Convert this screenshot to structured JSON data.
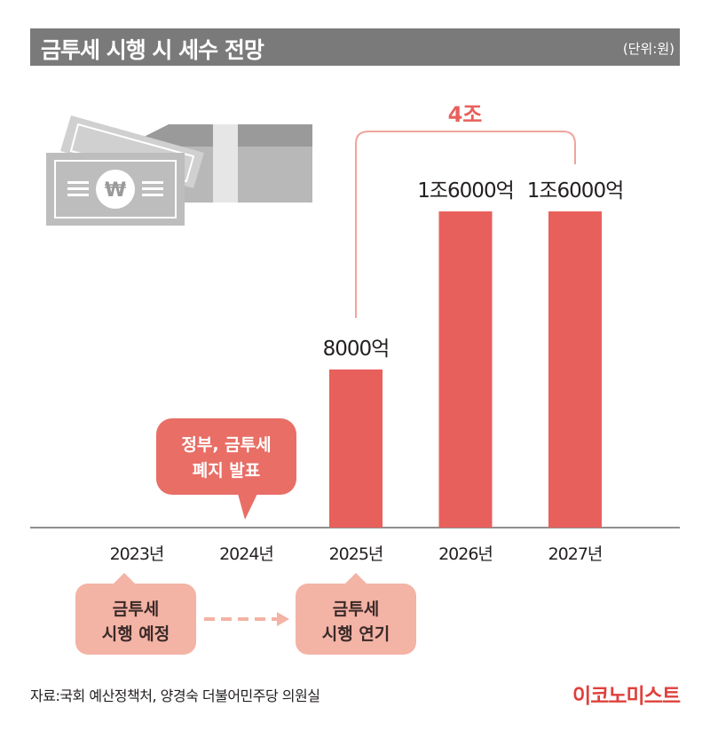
{
  "header": {
    "title": "금투세 시행 시 세수 전망",
    "unit": "(단위:원)"
  },
  "chart_data": {
    "type": "bar",
    "categories": [
      "2023년",
      "2024년",
      "2025년",
      "2026년",
      "2027년"
    ],
    "values": [
      0,
      0,
      8000,
      16000,
      16000
    ],
    "value_unit": "억원",
    "data_labels": [
      "",
      "",
      "8000억",
      "1조6000억",
      "1조6000억"
    ],
    "ylim": [
      0,
      16000
    ],
    "bracket_label": "4조",
    "bracket_range": [
      "2025년",
      "2027년"
    ],
    "bar_color": "#e8605c",
    "grid": false
  },
  "callouts": {
    "bubble": {
      "line1": "정부, 금투세",
      "line2": "폐지 발표"
    },
    "box1": {
      "line1": "금투세",
      "line2": "시행 예정"
    },
    "box2": {
      "line1": "금투세",
      "line2": "시행 연기"
    }
  },
  "icons": {
    "illustration": "money-bills-icon",
    "arrow": "dashed-arrow-icon"
  },
  "footer": {
    "source": "자료:국회 예산정책처, 양경숙 더불어민주당 의원실",
    "brand": "이코노미스트"
  },
  "colors": {
    "bar": "#e8605c",
    "bubble": "#e86e66",
    "box": "#f3b3a5",
    "title_bar": "#7a7a7a",
    "brand": "#e0403c"
  }
}
